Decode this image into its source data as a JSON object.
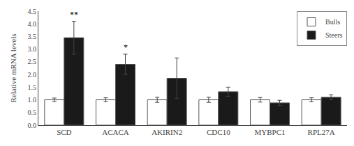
{
  "chart_data": {
    "type": "bar",
    "categories": [
      "SCD",
      "ACACA",
      "AKIRIN2",
      "CDC10",
      "MYBPC1",
      "RPL27A"
    ],
    "series": [
      {
        "name": "Bulls",
        "color": "white",
        "values": [
          1.0,
          1.0,
          1.0,
          1.0,
          1.0,
          1.0
        ],
        "errors": [
          0.07,
          0.08,
          0.1,
          0.1,
          0.09,
          0.08
        ]
      },
      {
        "name": "Steers",
        "color": "#1a1a1a",
        "values": [
          3.45,
          2.4,
          1.85,
          1.32,
          0.88,
          1.1
        ],
        "errors": [
          0.65,
          0.4,
          0.8,
          0.18,
          0.1,
          0.1
        ]
      }
    ],
    "ylabel": "Relative mRNA levels",
    "ylim": [
      0,
      4.5
    ],
    "yticks": [
      {
        "value": 0,
        "label": "0.0"
      },
      0.5,
      {
        "value": 1,
        "label": "1.0"
      },
      1.5,
      {
        "value": 2,
        "label": "2.0"
      },
      2.5,
      {
        "value": 3,
        "label": "3.0"
      },
      3.5,
      {
        "value": 4,
        "label": "4.0"
      },
      4.5
    ],
    "annotations": [
      {
        "category": "SCD",
        "series": "Steers",
        "text": "**"
      },
      {
        "category": "ACACA",
        "series": "Steers",
        "text": "*"
      }
    ],
    "grid": false,
    "legend": "upper right"
  }
}
